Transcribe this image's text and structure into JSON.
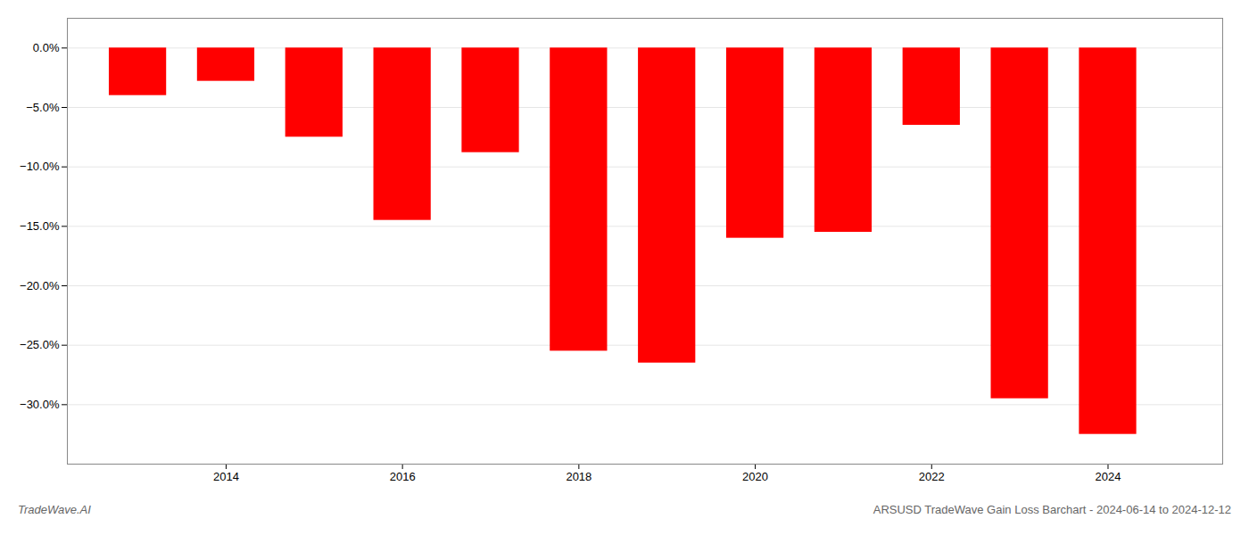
{
  "chart_data": {
    "type": "bar",
    "title": "ARSUSD TradeWave Gain Loss Barchart - 2024-06-14 to 2024-12-12",
    "annotations": [
      "TradeWave.AI"
    ],
    "x": [
      2013,
      2014,
      2015,
      2016,
      2017,
      2018,
      2019,
      2020,
      2021,
      2022,
      2023,
      2024
    ],
    "values": [
      -4.0,
      -2.8,
      -7.5,
      -14.5,
      -8.8,
      -25.5,
      -26.5,
      -16.0,
      -15.5,
      -6.5,
      -29.5,
      -32.5
    ],
    "color": "#ff0000",
    "xlim": [
      2012.2,
      2025.3
    ],
    "xticks": [
      2014,
      2016,
      2018,
      2020,
      2022,
      2024
    ],
    "ylim": [
      -35,
      2.5
    ],
    "yticks": [
      {
        "value": 0.0,
        "label": "0.0%"
      },
      {
        "value": -5.0,
        "label": "−5.0%"
      },
      {
        "value": -10.0,
        "label": "−10.0%"
      },
      {
        "value": -15.0,
        "label": "−15.0%"
      },
      {
        "value": -20.0,
        "label": "−20.0%"
      },
      {
        "value": -25.0,
        "label": "−25.0%"
      },
      {
        "value": -30.0,
        "label": "−30.0%"
      }
    ],
    "grid": true
  }
}
